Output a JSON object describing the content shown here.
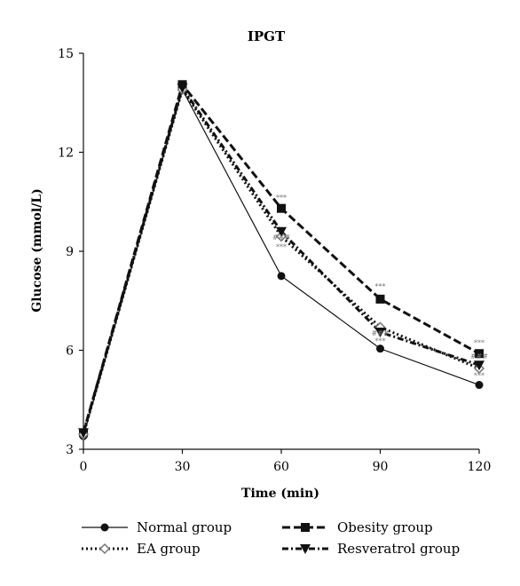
{
  "chart_data": {
    "type": "line",
    "title": "IPGT",
    "xlabel": "Time (min)",
    "ylabel": "Glucose (mmol/L)",
    "x": [
      0,
      30,
      60,
      90,
      120
    ],
    "xlim": [
      0,
      120
    ],
    "ylim": [
      3,
      15
    ],
    "xticks": [
      0,
      30,
      60,
      90,
      120
    ],
    "yticks": [
      3,
      6,
      9,
      12,
      15
    ],
    "grid": false,
    "legend_position": "bottom",
    "series": [
      {
        "name": "Normal group",
        "marker": "circle",
        "line_style": "solid",
        "values": [
          3.4,
          13.9,
          8.25,
          6.05,
          4.95
        ]
      },
      {
        "name": "Obesity group",
        "marker": "square",
        "line_style": "dashed",
        "values": [
          3.5,
          14.05,
          10.3,
          7.55,
          5.9
        ]
      },
      {
        "name": "EA group",
        "marker": "diamond-open",
        "line_style": "dotted",
        "values": [
          3.45,
          13.9,
          9.45,
          6.7,
          5.45
        ]
      },
      {
        "name": "Resveratrol group",
        "marker": "triangle-down",
        "line_style": "dash-dot",
        "values": [
          3.5,
          13.95,
          9.6,
          6.55,
          5.55
        ]
      }
    ],
    "annotations": [
      {
        "x": 60,
        "y": 10.55,
        "text": "***"
      },
      {
        "x": 60,
        "y": 9.35,
        "text": "###"
      },
      {
        "x": 60,
        "y": 9.05,
        "text": "***"
      },
      {
        "x": 90,
        "y": 7.85,
        "text": "***"
      },
      {
        "x": 90,
        "y": 6.45,
        "text": "###"
      },
      {
        "x": 90,
        "y": 6.2,
        "text": "***"
      },
      {
        "x": 120,
        "y": 6.15,
        "text": "***"
      },
      {
        "x": 120,
        "y": 5.75,
        "text": "###"
      },
      {
        "x": 120,
        "y": 5.15,
        "text": "***"
      }
    ]
  }
}
